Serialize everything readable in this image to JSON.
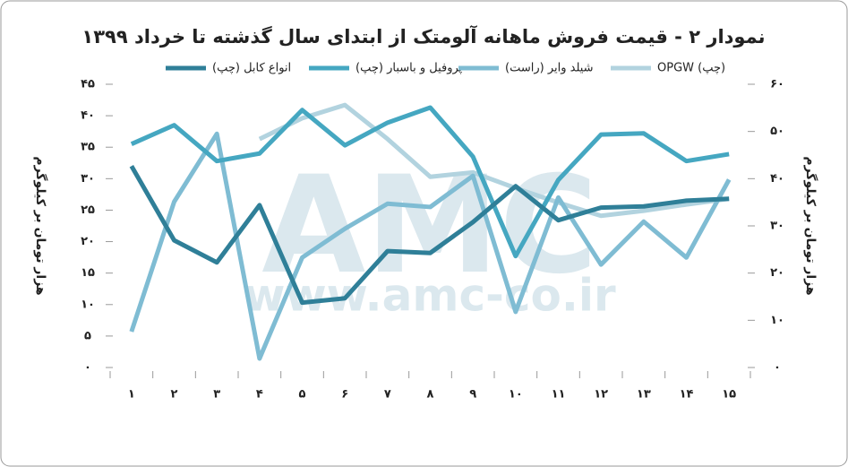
{
  "chart_data": {
    "type": "line",
    "title": "نمودار ۲ - قیمت فروش ماهانه آلومتک از ابتدای سال گذشته تا خرداد ۱۳۹۹",
    "watermark": [
      "AMC",
      "www.amc-co.ir"
    ],
    "y_label": "هزار تومان بر کیلوگرم",
    "y2_label": "هزار تومان بر کیلوگرم",
    "categories": [
      "۱",
      "۲",
      "۳",
      "۴",
      "۵",
      "۶",
      "۷",
      "۸",
      "۹",
      "۱۰",
      "۱۱",
      "۱۲",
      "۱۳",
      "۱۴",
      "۱۵"
    ],
    "ylim": [
      0,
      45
    ],
    "yticks": [
      {
        "value": 0,
        "label": "۰"
      },
      {
        "value": 5,
        "label": "۵"
      },
      {
        "value": 10,
        "label": "۱۰"
      },
      {
        "value": 15,
        "label": "۱۵"
      },
      {
        "value": 20,
        "label": "۲۰"
      },
      {
        "value": 25,
        "label": "۲۵"
      },
      {
        "value": 30,
        "label": "۳۰"
      },
      {
        "value": 35,
        "label": "۳۵"
      },
      {
        "value": 40,
        "label": "۴۰"
      },
      {
        "value": 45,
        "label": "۴۵"
      }
    ],
    "y2lim": [
      0,
      60
    ],
    "y2ticks": [
      {
        "value": 0,
        "label": "۰"
      },
      {
        "value": 10,
        "label": "۱۰"
      },
      {
        "value": 20,
        "label": "۲۰"
      },
      {
        "value": 30,
        "label": "۳۰"
      },
      {
        "value": 40,
        "label": "۴۰"
      },
      {
        "value": 50,
        "label": "۵۰"
      },
      {
        "value": 60,
        "label": "۶۰"
      }
    ],
    "series": [
      {
        "name": "انواع کابل (چپ)",
        "color": "#2f7f98",
        "values": [
          32,
          20.2,
          16.7,
          25.8,
          10.3,
          11,
          18.5,
          18.2,
          23.1,
          28.8,
          23.4,
          25.4,
          25.6,
          26.5,
          26.8
        ]
      },
      {
        "name": "پروفیل و باسبار (چپ)",
        "color": "#45a7c1",
        "values": [
          35.5,
          38.5,
          32.8,
          34,
          40.9,
          35.3,
          38.9,
          41.3,
          33.5,
          17.7,
          29.8,
          37,
          37.2,
          32.8,
          33.9
        ]
      },
      {
        "name": "شیلد وایر (راست)",
        "color": "#7fbcd3",
        "axis": "y2",
        "values": [
          7.6,
          35.1,
          49.5,
          1.9,
          23.3,
          29.4,
          34.7,
          34,
          40.6,
          11.8,
          36,
          21.8,
          30.9,
          23.3,
          39.8
        ]
      },
      {
        "name": "OPGW (چپ)",
        "color": "#b2d3df",
        "values": [
          null,
          null,
          null,
          36.3,
          39.6,
          41.7,
          36.3,
          30.3,
          31,
          28.5,
          26.2,
          24.1,
          24.9,
          25.9,
          26.8
        ]
      }
    ]
  }
}
